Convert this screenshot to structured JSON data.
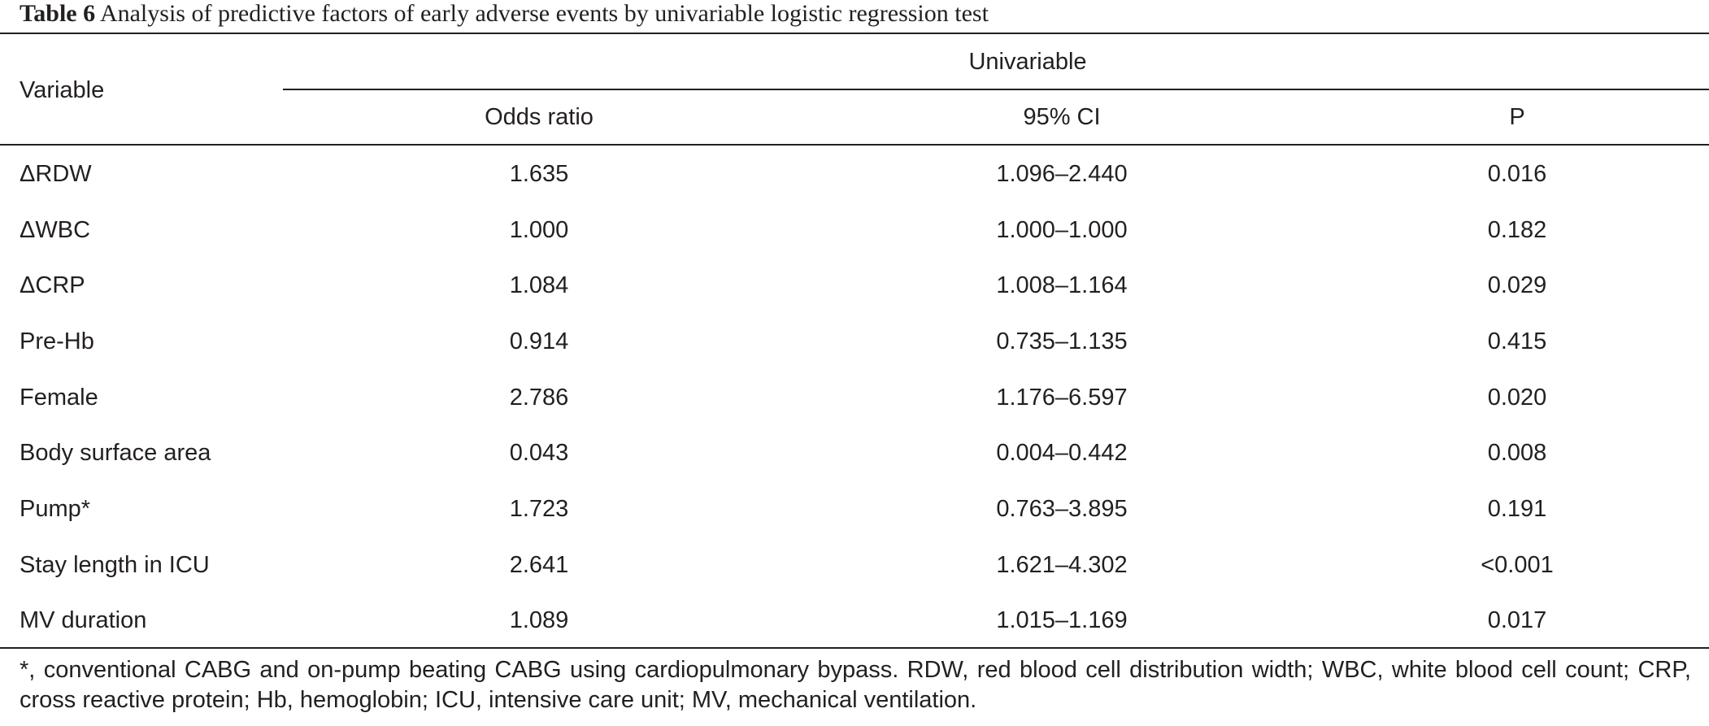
{
  "caption": {
    "label": "Table 6",
    "text": "Analysis of predictive factors of early adverse events by univariable logistic regression test"
  },
  "header": {
    "variable": "Variable",
    "group": "Univariable",
    "odds_ratio": "Odds ratio",
    "ci": "95% CI",
    "p": "P"
  },
  "rows": [
    {
      "variable": "ΔRDW",
      "odds_ratio": "1.635",
      "ci": "1.096–2.440",
      "p": "0.016"
    },
    {
      "variable": "ΔWBC",
      "odds_ratio": "1.000",
      "ci": "1.000–1.000",
      "p": "0.182"
    },
    {
      "variable": "ΔCRP",
      "odds_ratio": "1.084",
      "ci": "1.008–1.164",
      "p": "0.029"
    },
    {
      "variable": "Pre-Hb",
      "odds_ratio": "0.914",
      "ci": "0.735–1.135",
      "p": "0.415"
    },
    {
      "variable": "Female",
      "odds_ratio": "2.786",
      "ci": "1.176–6.597",
      "p": "0.020"
    },
    {
      "variable": "Body surface area",
      "odds_ratio": "0.043",
      "ci": "0.004–0.442",
      "p": "0.008"
    },
    {
      "variable": "Pump*",
      "odds_ratio": "1.723",
      "ci": "0.763–3.895",
      "p": "0.191"
    },
    {
      "variable": "Stay length in ICU",
      "odds_ratio": "2.641",
      "ci": "1.621–4.302",
      "p": "<0.001"
    },
    {
      "variable": "MV duration",
      "odds_ratio": "1.089",
      "ci": "1.015–1.169",
      "p": "0.017"
    }
  ],
  "footnote": "*, conventional CABG and on-pump beating CABG using cardiopulmonary bypass. RDW, red blood cell distribution width; WBC, white blood cell count; CRP, cross reactive protein; Hb, hemoglobin; ICU, intensive care unit; MV, mechanical ventilation."
}
